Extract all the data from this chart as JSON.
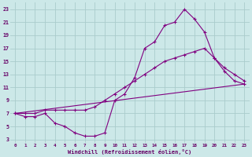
{
  "line1_x": [
    0,
    1,
    2,
    3,
    4,
    5,
    6,
    7,
    8,
    9,
    10,
    11,
    12,
    13,
    14,
    15,
    16,
    17,
    18,
    19,
    20,
    21,
    22,
    23
  ],
  "line1_y": [
    7,
    6.5,
    6.5,
    7,
    5.5,
    5,
    4,
    3.5,
    3.5,
    4,
    9,
    10,
    12.5,
    17,
    18,
    20.5,
    21,
    23,
    21.5,
    19.5,
    15.5,
    13.5,
    12,
    11.5
  ],
  "line2_x": [
    0,
    1,
    2,
    3,
    4,
    5,
    6,
    7,
    8,
    9,
    10,
    11,
    12,
    13,
    14,
    15,
    16,
    17,
    18,
    19,
    20,
    21,
    22,
    23
  ],
  "line2_y": [
    7,
    7,
    7,
    7.5,
    7.5,
    7.5,
    7.5,
    7.5,
    8,
    9,
    10,
    11,
    12,
    13,
    14,
    15,
    15.5,
    16,
    16.5,
    17,
    15.5,
    14,
    13,
    12
  ],
  "line3_x": [
    0,
    23
  ],
  "line3_y": [
    7,
    11.5
  ],
  "line_color": "#800080",
  "bg_color": "#cce8e8",
  "grid_color": "#aacccc",
  "xmin": 0,
  "xmax": 23,
  "ymin": 3,
  "ymax": 23,
  "yticks": [
    3,
    5,
    7,
    9,
    11,
    13,
    15,
    17,
    19,
    21,
    23
  ],
  "xticks": [
    0,
    1,
    2,
    3,
    4,
    5,
    6,
    7,
    8,
    9,
    10,
    11,
    12,
    13,
    14,
    15,
    16,
    17,
    18,
    19,
    20,
    21,
    22,
    23
  ],
  "xlabel": "Windchill (Refroidissement éolien,°C)",
  "font_color": "#660066"
}
